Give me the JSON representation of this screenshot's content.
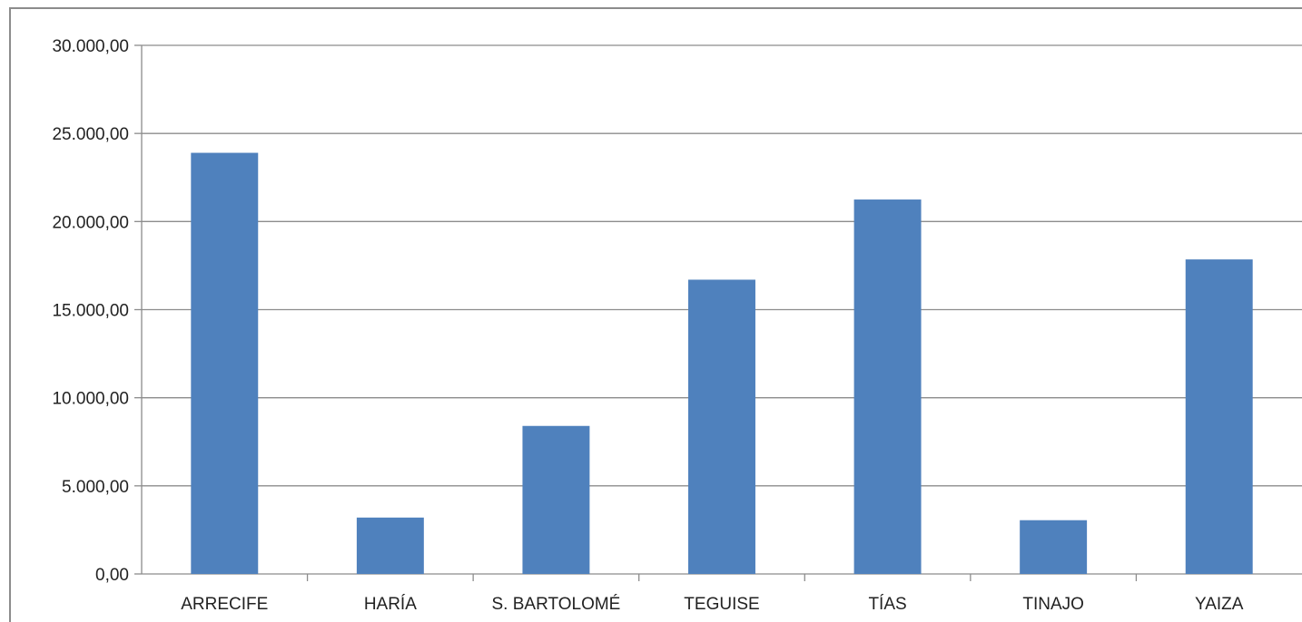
{
  "chart_data": {
    "type": "bar",
    "categories": [
      "ARRECIFE",
      "HARÍA",
      "S. BARTOLOMÉ",
      "TEGUISE",
      "TÍAS",
      "TINAJO",
      "YAIZA"
    ],
    "values": [
      23900,
      3200,
      8400,
      16700,
      21250,
      3050,
      17850
    ],
    "title": "",
    "xlabel": "",
    "ylabel": "",
    "ylim": [
      0,
      30000
    ],
    "yticks": [
      0,
      5000,
      10000,
      15000,
      20000,
      25000,
      30000
    ],
    "ytick_labels": [
      "0,00",
      "5.000,00",
      "10.000,00",
      "15.000,00",
      "20.000,00",
      "25.000,00",
      "30.000,00"
    ],
    "grid": true,
    "legend": "none",
    "bar_color": "#4f81bd",
    "grid_color": "#8c8c8c"
  }
}
